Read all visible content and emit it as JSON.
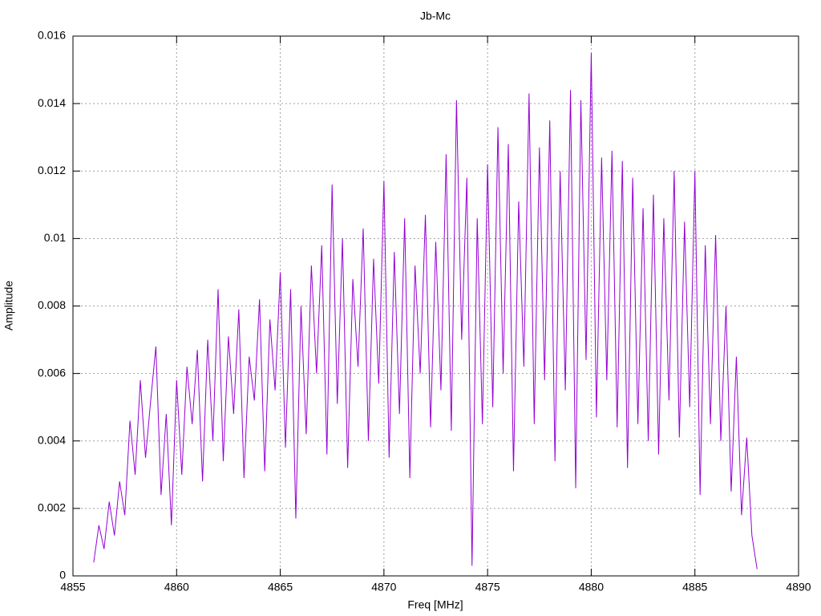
{
  "chart_data": {
    "type": "line",
    "title": "Jb-Mc",
    "x_label": "Freq [MHz]",
    "y_label": "Amplitude",
    "color": "#9400d3",
    "grid": true,
    "xlim": [
      4855,
      4890
    ],
    "xticks": [
      4855,
      4860,
      4865,
      4870,
      4875,
      4880,
      4885,
      4890
    ],
    "ylim": [
      0,
      0.016
    ],
    "yticks": [
      0,
      0.002,
      0.004,
      0.006,
      0.008,
      0.01,
      0.012,
      0.014,
      0.016
    ],
    "x": [
      4856,
      4856.25,
      4856.5,
      4856.75,
      4857,
      4857.25,
      4857.5,
      4857.75,
      4858,
      4858.25,
      4858.5,
      4858.75,
      4859,
      4859.25,
      4859.5,
      4859.75,
      4860,
      4860.25,
      4860.5,
      4860.75,
      4861,
      4861.25,
      4861.5,
      4861.75,
      4862,
      4862.25,
      4862.5,
      4862.75,
      4863,
      4863.25,
      4863.5,
      4863.75,
      4864,
      4864.25,
      4864.5,
      4864.75,
      4865,
      4865.25,
      4865.5,
      4865.75,
      4866,
      4866.25,
      4866.5,
      4866.75,
      4867,
      4867.25,
      4867.5,
      4867.75,
      4868,
      4868.25,
      4868.5,
      4868.75,
      4869,
      4869.25,
      4869.5,
      4869.75,
      4870,
      4870.25,
      4870.5,
      4870.75,
      4871,
      4871.25,
      4871.5,
      4871.75,
      4872,
      4872.25,
      4872.5,
      4872.75,
      4873,
      4873.25,
      4873.5,
      4873.75,
      4874,
      4874.25,
      4874.5,
      4874.75,
      4875,
      4875.25,
      4875.5,
      4875.75,
      4876,
      4876.25,
      4876.5,
      4876.75,
      4877,
      4877.25,
      4877.5,
      4877.75,
      4878,
      4878.25,
      4878.5,
      4878.75,
      4879,
      4879.25,
      4879.5,
      4879.75,
      4880,
      4880.25,
      4880.5,
      4880.75,
      4881,
      4881.25,
      4881.5,
      4881.75,
      4882,
      4882.25,
      4882.5,
      4882.75,
      4883,
      4883.25,
      4883.5,
      4883.75,
      4884,
      4884.25,
      4884.5,
      4884.75,
      4885,
      4885.25,
      4885.5,
      4885.75,
      4886,
      4886.25,
      4886.5,
      4886.75,
      4887,
      4887.25,
      4887.5,
      4887.75,
      4888
    ],
    "values": [
      0.0004,
      0.0015,
      0.0008,
      0.0022,
      0.0012,
      0.0028,
      0.0018,
      0.0046,
      0.003,
      0.0058,
      0.0035,
      0.0052,
      0.0068,
      0.0024,
      0.0048,
      0.0015,
      0.0058,
      0.003,
      0.0062,
      0.0045,
      0.0067,
      0.0028,
      0.007,
      0.004,
      0.0085,
      0.0034,
      0.0071,
      0.0048,
      0.0079,
      0.0029,
      0.0065,
      0.0052,
      0.0082,
      0.0031,
      0.0076,
      0.0055,
      0.009,
      0.0038,
      0.0085,
      0.0017,
      0.008,
      0.0042,
      0.0092,
      0.006,
      0.0098,
      0.0036,
      0.0116,
      0.0051,
      0.01,
      0.0032,
      0.0088,
      0.0062,
      0.0103,
      0.004,
      0.0094,
      0.0057,
      0.0117,
      0.0035,
      0.0096,
      0.0048,
      0.0106,
      0.0029,
      0.0092,
      0.006,
      0.0107,
      0.0044,
      0.0099,
      0.0055,
      0.0125,
      0.0043,
      0.0141,
      0.007,
      0.0118,
      0.0003,
      0.0106,
      0.0045,
      0.0122,
      0.005,
      0.0133,
      0.006,
      0.0128,
      0.0031,
      0.0111,
      0.0062,
      0.0143,
      0.0045,
      0.0127,
      0.0058,
      0.0135,
      0.0034,
      0.012,
      0.0055,
      0.0144,
      0.0026,
      0.0141,
      0.0064,
      0.0155,
      0.0047,
      0.0124,
      0.0058,
      0.0126,
      0.0044,
      0.0123,
      0.0032,
      0.0118,
      0.0045,
      0.0109,
      0.004,
      0.0113,
      0.0036,
      0.0106,
      0.0052,
      0.012,
      0.0041,
      0.0105,
      0.005,
      0.012,
      0.0024,
      0.0098,
      0.0045,
      0.0101,
      0.004,
      0.008,
      0.0025,
      0.0065,
      0.0018,
      0.0041,
      0.0012,
      0.0002
    ]
  }
}
